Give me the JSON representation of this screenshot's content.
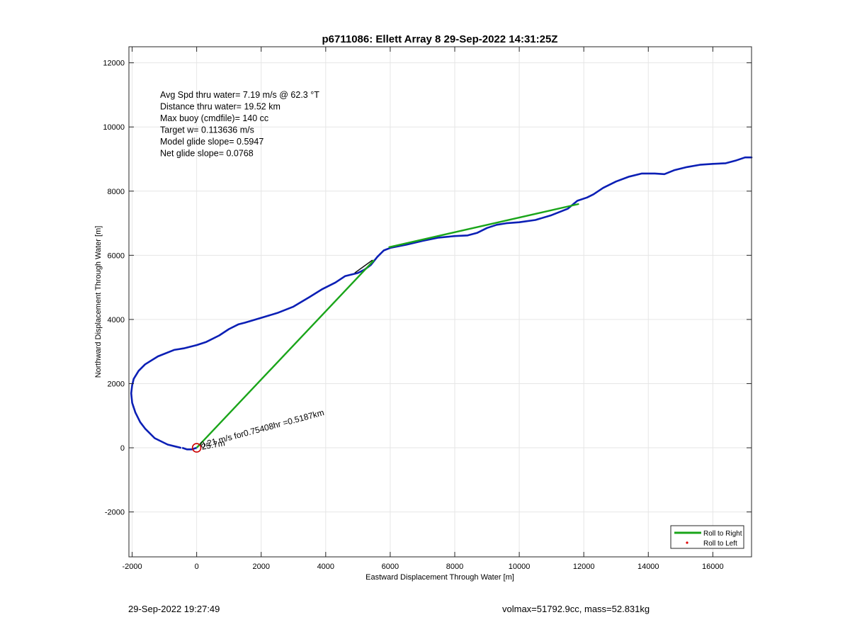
{
  "chart_data": {
    "type": "line",
    "title": "p6711086: Ellett Array 8 29-Sep-2022 14:31:25Z",
    "xlabel": "Eastward Displacement Through Water [m]",
    "ylabel": "Northward Displacement Through Water [m]",
    "xlim": [
      -2100,
      17200
    ],
    "ylim": [
      -3400,
      12500
    ],
    "xticks": [
      -2000,
      0,
      2000,
      4000,
      6000,
      8000,
      10000,
      12000,
      14000,
      16000
    ],
    "yticks": [
      -2000,
      0,
      2000,
      4000,
      6000,
      8000,
      10000,
      12000
    ],
    "xtick_labels": [
      "-2000",
      "0",
      "2000",
      "4000",
      "6000",
      "8000",
      "10000",
      "12000",
      "14000",
      "16000"
    ],
    "ytick_labels": [
      "-2000",
      "0",
      "2000",
      "4000",
      "6000",
      "8000",
      "10000",
      "12000"
    ],
    "grid": true,
    "legend_position": "bottom-right",
    "colors": {
      "track": "#0b1fb5",
      "roll_right": "#1aa51a",
      "roll_left": "#e00000",
      "start_marker": "#cc0000",
      "dark_segment": "#111111"
    },
    "stats_text": [
      "Avg Spd thru water=  7.19 m/s @  62.3 °T",
      "Distance thru water= 19.52 km",
      "Max buoy (cmdfile)= 140 cc",
      "Target w= 0.113636 m/s",
      "Model glide slope= 0.5947",
      "Net glide slope= 0.0768"
    ],
    "annotation": "0.21 m/s for0.75408hr =0.5187km",
    "start_overlap_label": "25.7m",
    "series": [
      {
        "name": "Roll to Right",
        "style": "line",
        "segments": [
          {
            "x": [
              0,
              5500
            ],
            "y": [
              0,
              5850
            ]
          },
          {
            "x": [
              5950,
              11850
            ],
            "y": [
              6250,
              7600
            ]
          }
        ]
      },
      {
        "name": "Roll to Left",
        "style": "dot",
        "x": [],
        "y": []
      },
      {
        "style": "line",
        "x": [
          -500,
          -900,
          -1300,
          -1600,
          -1750,
          -1900,
          -2000,
          -2030,
          -2000,
          -1950,
          -1800,
          -1600,
          -1200,
          -700,
          -400,
          0,
          300,
          700,
          1000,
          1300,
          1500,
          2000,
          2500,
          3000,
          3500,
          3900,
          4300,
          4600,
          5000,
          5200,
          5400,
          5600,
          5800,
          6000,
          6500,
          7000,
          7500,
          8000,
          8400,
          8700,
          9000,
          9300,
          9600,
          10000,
          10500,
          11000,
          11500,
          11800,
          12100,
          12300,
          12600,
          13000,
          13400,
          13800,
          14200,
          14500,
          14800,
          15200,
          15600,
          16000,
          16400,
          16700,
          17000,
          17200
        ],
        "y": [
          0,
          100,
          300,
          600,
          800,
          1100,
          1400,
          1700,
          1950,
          2150,
          2400,
          2600,
          2850,
          3050,
          3100,
          3200,
          3300,
          3500,
          3700,
          3850,
          3900,
          4050,
          4200,
          4400,
          4700,
          4950,
          5150,
          5350,
          5450,
          5550,
          5700,
          5950,
          6150,
          6230,
          6330,
          6450,
          6550,
          6600,
          6620,
          6700,
          6850,
          6950,
          7000,
          7030,
          7100,
          7250,
          7450,
          7700,
          7800,
          7900,
          8100,
          8300,
          8450,
          8550,
          8550,
          8530,
          8650,
          8750,
          8820,
          8850,
          8870,
          8950,
          9050,
          9050
        ]
      },
      {
        "style": "line",
        "x": [
          0,
          -150,
          -300,
          -450
        ],
        "y": [
          0,
          -50,
          -50,
          0
        ]
      }
    ],
    "start_marker": {
      "x": 0,
      "y": 0
    }
  },
  "footer": {
    "timestamp": "29-Sep-2022 19:27:49",
    "summary": "volmax=51792.9cc, mass=52.831kg"
  }
}
